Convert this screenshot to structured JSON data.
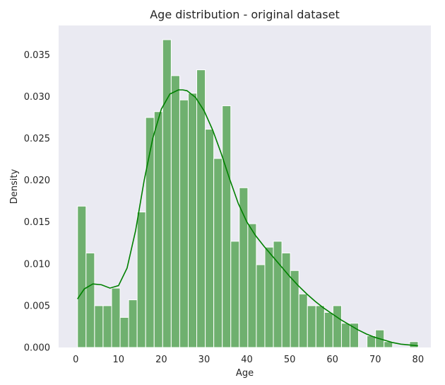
{
  "chart_data": {
    "type": "histogram",
    "title": "Age distribution - original dataset",
    "xlabel": "Age",
    "ylabel": "Density",
    "xlim": [
      -4,
      83
    ],
    "ylim": [
      0,
      0.0385
    ],
    "grid": false,
    "background_color": "#eaeaf2",
    "bar_color": "#6fb06f",
    "kde_color": "#008000",
    "x_ticks": [
      0,
      10,
      20,
      30,
      40,
      50,
      60,
      70,
      80
    ],
    "y_ticks": [
      0.0,
      0.005,
      0.01,
      0.015,
      0.02,
      0.025,
      0.03,
      0.035
    ],
    "y_tick_labels": [
      "0.000",
      "0.005",
      "0.010",
      "0.015",
      "0.020",
      "0.025",
      "0.030",
      "0.035"
    ],
    "bin_width": 1.99,
    "bins": [
      {
        "x0": 0.42,
        "density": 0.0169
      },
      {
        "x0": 2.41,
        "density": 0.0113
      },
      {
        "x0": 4.4,
        "density": 0.005
      },
      {
        "x0": 6.39,
        "density": 0.005
      },
      {
        "x0": 8.38,
        "density": 0.0071
      },
      {
        "x0": 10.37,
        "density": 0.0036
      },
      {
        "x0": 12.36,
        "density": 0.0057
      },
      {
        "x0": 14.35,
        "density": 0.0162
      },
      {
        "x0": 16.34,
        "density": 0.0275
      },
      {
        "x0": 18.33,
        "density": 0.0282
      },
      {
        "x0": 20.32,
        "density": 0.0368
      },
      {
        "x0": 22.31,
        "density": 0.0325
      },
      {
        "x0": 24.3,
        "density": 0.0296
      },
      {
        "x0": 26.29,
        "density": 0.0304
      },
      {
        "x0": 28.28,
        "density": 0.0332
      },
      {
        "x0": 30.27,
        "density": 0.0261
      },
      {
        "x0": 32.26,
        "density": 0.0226
      },
      {
        "x0": 34.25,
        "density": 0.0289
      },
      {
        "x0": 36.24,
        "density": 0.0127
      },
      {
        "x0": 38.23,
        "density": 0.0191
      },
      {
        "x0": 40.22,
        "density": 0.0148
      },
      {
        "x0": 42.21,
        "density": 0.0099
      },
      {
        "x0": 44.2,
        "density": 0.012
      },
      {
        "x0": 46.19,
        "density": 0.0127
      },
      {
        "x0": 48.18,
        "density": 0.0113
      },
      {
        "x0": 50.17,
        "density": 0.0092
      },
      {
        "x0": 52.16,
        "density": 0.0064
      },
      {
        "x0": 54.15,
        "density": 0.005
      },
      {
        "x0": 56.14,
        "density": 0.005
      },
      {
        "x0": 58.13,
        "density": 0.0042
      },
      {
        "x0": 60.12,
        "density": 0.005
      },
      {
        "x0": 62.11,
        "density": 0.0029
      },
      {
        "x0": 64.1,
        "density": 0.0029
      },
      {
        "x0": 66.09,
        "density": 0.0
      },
      {
        "x0": 68.08,
        "density": 0.0014
      },
      {
        "x0": 70.07,
        "density": 0.0021
      },
      {
        "x0": 72.06,
        "density": 0.0007
      },
      {
        "x0": 74.05,
        "density": 0.0
      },
      {
        "x0": 76.04,
        "density": 0.0
      },
      {
        "x0": 78.03,
        "density": 0.0007
      }
    ],
    "kde": {
      "x": [
        0.4,
        2,
        4,
        6,
        8,
        10,
        12,
        14,
        16,
        18,
        20,
        22,
        24,
        25,
        26,
        28,
        30,
        32,
        34,
        36,
        38,
        40,
        42,
        44,
        46,
        48,
        50,
        52,
        54,
        56,
        58,
        60,
        62,
        64,
        66,
        68,
        70,
        72,
        74,
        76,
        78,
        80
      ],
      "y": [
        0.0058,
        0.007,
        0.0076,
        0.0075,
        0.0071,
        0.0074,
        0.0095,
        0.014,
        0.02,
        0.025,
        0.0285,
        0.0303,
        0.0308,
        0.0308,
        0.0307,
        0.0299,
        0.0283,
        0.026,
        0.0232,
        0.0201,
        0.0172,
        0.015,
        0.0134,
        0.0121,
        0.0109,
        0.0097,
        0.0085,
        0.0074,
        0.0064,
        0.0055,
        0.0047,
        0.004,
        0.0033,
        0.0027,
        0.0021,
        0.0016,
        0.0012,
        0.0009,
        0.0006,
        0.0004,
        0.0003,
        0.0002
      ]
    }
  }
}
